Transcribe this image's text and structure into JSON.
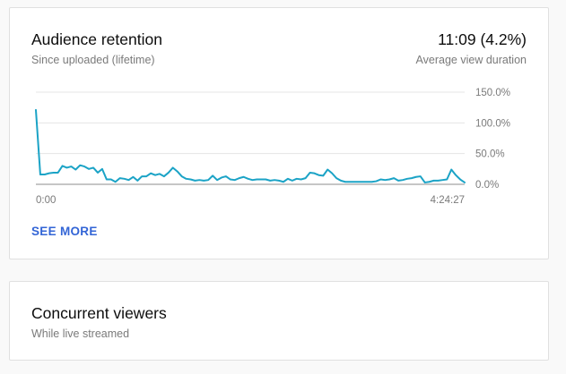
{
  "retention": {
    "title": "Audience retention",
    "subtitle": "Since uploaded (lifetime)",
    "metric_value": "11:09 (4.2%)",
    "metric_label": "Average view duration",
    "see_more": "SEE MORE",
    "x_start_label": "0:00",
    "x_end_label": "4:24:27"
  },
  "concurrent": {
    "title": "Concurrent viewers",
    "subtitle": "While live streamed"
  },
  "colors": {
    "line": "#1ba3c6",
    "link": "#3365d6",
    "grid": "#e5e5e5",
    "axis": "#8c8c8c"
  },
  "chart_data": {
    "type": "line",
    "x_range_labels": [
      "0:00",
      "4:24:27"
    ],
    "y_ticks": [
      "150.0%",
      "100.0%",
      "50.0%",
      "0.0%"
    ],
    "ylim": [
      0,
      150
    ],
    "grid": true,
    "series": [
      {
        "values": [
          121,
          16,
          16,
          18,
          19,
          19,
          30,
          27,
          29,
          24,
          31,
          29,
          25,
          27,
          19,
          25,
          8,
          8,
          4,
          10,
          9,
          7,
          12,
          6,
          13,
          13,
          18,
          15,
          17,
          13,
          19,
          27,
          21,
          13,
          9,
          8,
          6,
          7,
          6,
          7,
          14,
          7,
          11,
          13,
          8,
          7,
          10,
          12,
          9,
          7,
          8,
          8,
          8,
          6,
          7,
          6,
          4,
          9,
          6,
          9,
          8,
          10,
          19,
          18,
          15,
          14,
          24,
          18,
          10,
          6,
          4,
          4,
          4,
          4,
          4,
          4,
          4,
          5,
          8,
          7,
          8,
          10,
          6,
          7,
          9,
          10,
          12,
          13,
          3,
          4,
          6,
          6,
          7,
          8,
          24,
          15,
          8,
          3
        ]
      }
    ]
  }
}
